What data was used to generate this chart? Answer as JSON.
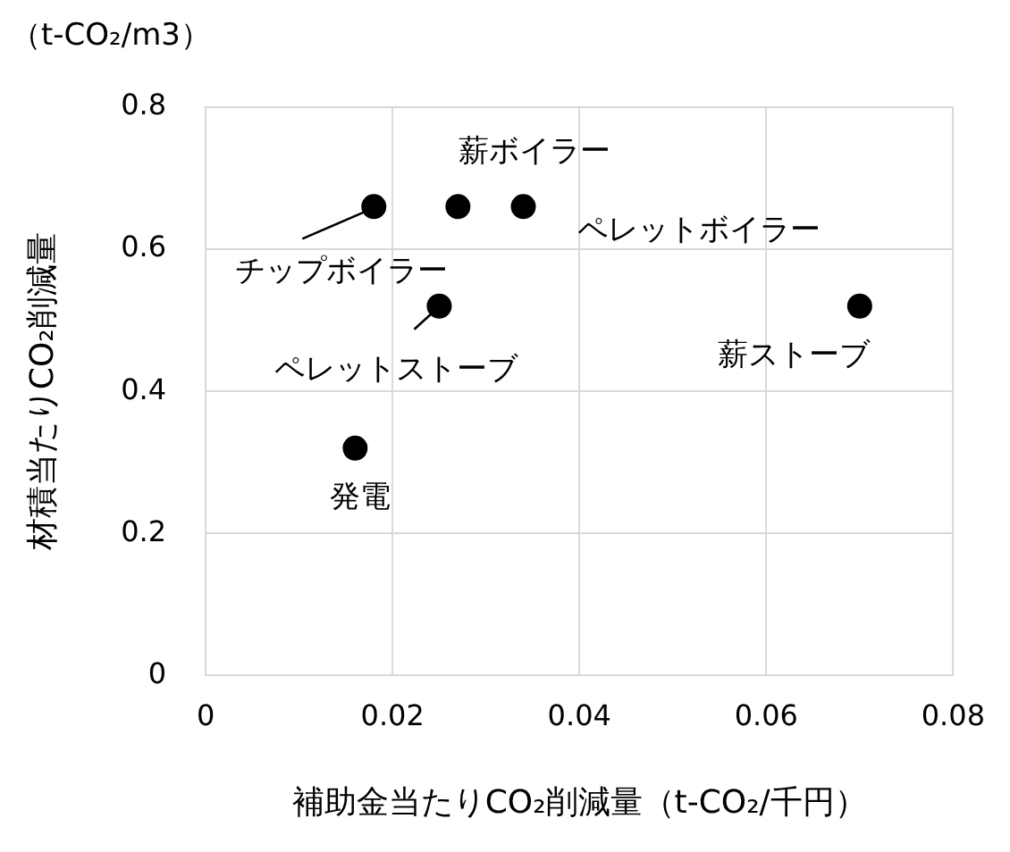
{
  "chart_data": {
    "type": "scatter",
    "subtitle": "（t-CO₂/m3）",
    "xlabel": "補助金当たりCO₂削減量（t-CO₂/千円）",
    "ylabel": "材積当たりCO₂削減量",
    "x": [
      0.018,
      0.027,
      0.034,
      0.025,
      0.07,
      0.016
    ],
    "values": [
      0.66,
      0.66,
      0.66,
      0.52,
      0.52,
      0.32
    ],
    "color": "#000000",
    "marker": "circle",
    "xlim": [
      0,
      0.08
    ],
    "xticks": [
      0,
      0.02,
      0.04,
      0.06,
      0.08
    ],
    "ylim": [
      0,
      0.8
    ],
    "yticks": [
      0,
      0.2,
      0.4,
      0.6,
      0.8
    ],
    "grid": true,
    "legend": false,
    "annotations": [
      {
        "text": "チップボイラー",
        "x": 0.018,
        "y": 0.66
      },
      {
        "text": "薪ボイラー",
        "x": 0.027,
        "y": 0.66
      },
      {
        "text": "ペレットボイラー",
        "x": 0.034,
        "y": 0.66
      },
      {
        "text": "ペレットストーブ",
        "x": 0.025,
        "y": 0.52
      },
      {
        "text": "薪ストーブ",
        "x": 0.07,
        "y": 0.52
      },
      {
        "text": "発電",
        "x": 0.016,
        "y": 0.32
      }
    ]
  }
}
